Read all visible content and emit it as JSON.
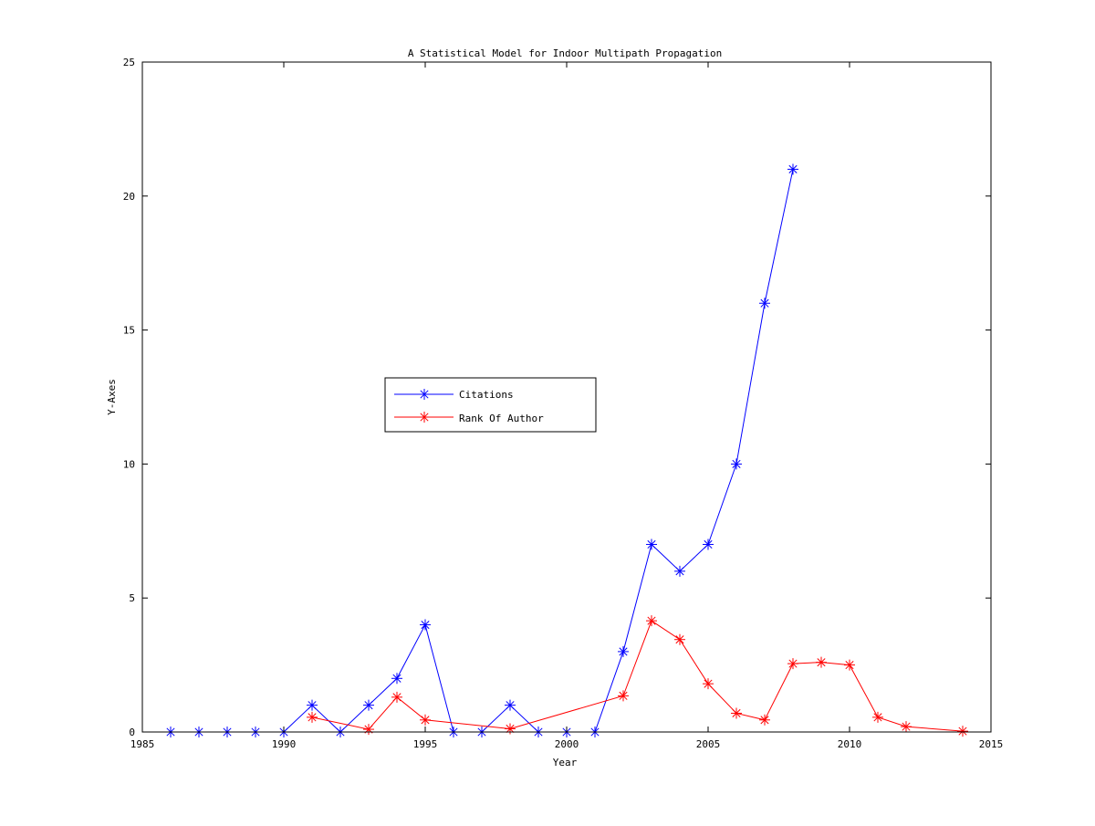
{
  "chart_data": {
    "type": "line",
    "title": "A Statistical Model for Indoor Multipath Propagation",
    "xlabel": "Year",
    "ylabel": "Y-Axes",
    "xlim": [
      1985,
      2015
    ],
    "ylim": [
      0,
      25
    ],
    "xticks": [
      1985,
      1990,
      1995,
      2000,
      2005,
      2010,
      2015
    ],
    "yticks": [
      0,
      5,
      10,
      15,
      20,
      25
    ],
    "grid": false,
    "legend_position": "center-left",
    "marker": "asterisk",
    "series": [
      {
        "name": "Citations",
        "color": "#0000ff",
        "x": [
          1986,
          1987,
          1988,
          1989,
          1990,
          1991,
          1992,
          1993,
          1994,
          1995,
          1996,
          1997,
          1998,
          1999,
          2000,
          2001,
          2002,
          2003,
          2004,
          2005,
          2006,
          2007,
          2008
        ],
        "y": [
          0,
          0,
          0,
          0,
          0,
          1,
          0,
          1,
          2,
          4,
          0,
          0,
          1,
          0,
          0,
          0,
          3,
          7,
          6,
          7,
          10,
          16,
          21
        ]
      },
      {
        "name": "Rank Of Author",
        "color": "#ff0000",
        "x": [
          1991,
          1993,
          1994,
          1995,
          1998,
          2002,
          2003,
          2004,
          2005,
          2006,
          2007,
          2008,
          2009,
          2010,
          2011,
          2012,
          2014
        ],
        "y": [
          0.55,
          0.1,
          1.3,
          0.45,
          0.12,
          1.35,
          4.15,
          3.45,
          1.8,
          0.7,
          0.45,
          2.55,
          2.6,
          2.5,
          0.55,
          0.2,
          0.03
        ]
      }
    ]
  }
}
